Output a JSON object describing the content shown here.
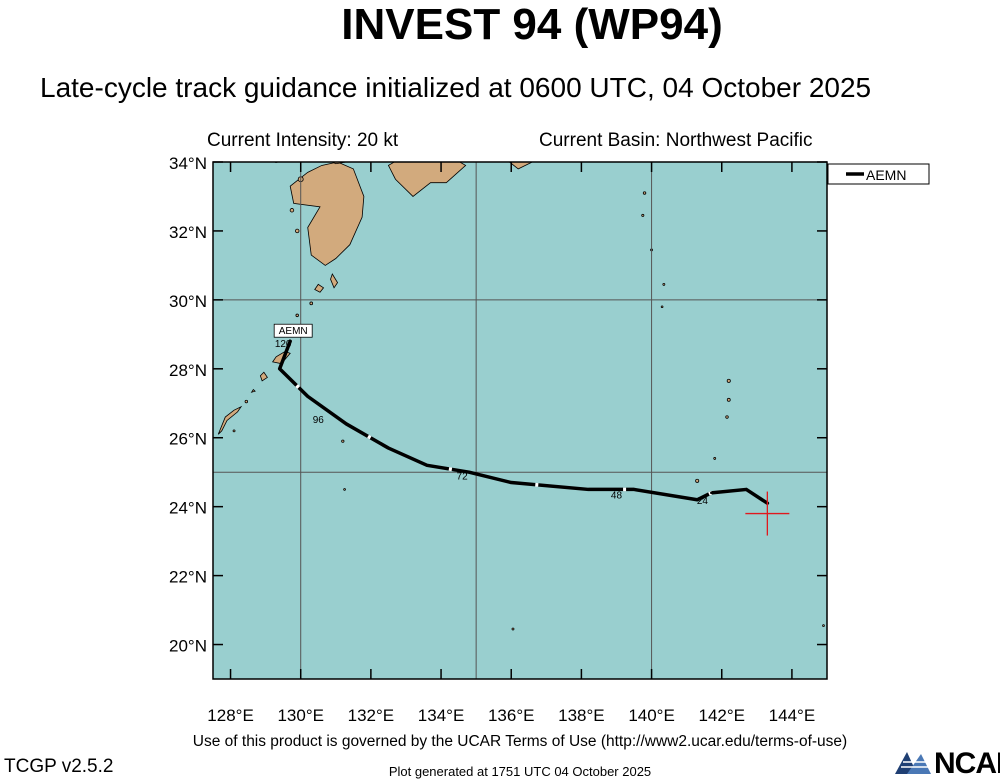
{
  "header": {
    "title": "INVEST 94 (WP94)",
    "subtitle": "Late-cycle track guidance initialized at 0600 UTC, 04 October 2025"
  },
  "info": {
    "intensity": "Current Intensity: 20 kt",
    "basin": "Current Basin: Northwest Pacific"
  },
  "map": {
    "lon_range": [
      127.5,
      145.0
    ],
    "lat_range": [
      19.0,
      34.0
    ],
    "lon_ticks": [
      "128°E",
      "130°E",
      "132°E",
      "134°E",
      "136°E",
      "138°E",
      "140°E",
      "142°E",
      "144°E"
    ],
    "lat_ticks": [
      "20°N",
      "22°N",
      "24°N",
      "26°N",
      "28°N",
      "30°N",
      "32°N",
      "34°N"
    ],
    "gridlines_lon": [
      130,
      135,
      140,
      145
    ],
    "gridlines_lat": [
      25,
      30
    ],
    "ocean_color": "#99cfcf",
    "land_color": "#d2aa7d",
    "current_position": {
      "lon": 143.3,
      "lat": 23.8
    }
  },
  "legend": {
    "entries": [
      {
        "label": "AEMN",
        "color": "#000000"
      }
    ]
  },
  "tracks": [
    {
      "label": "AEMN",
      "color": "#000000",
      "points": [
        {
          "lon": 143.3,
          "lat": 24.1
        },
        {
          "lon": 142.7,
          "lat": 24.5
        },
        {
          "lon": 141.7,
          "lat": 24.4
        },
        {
          "lon": 141.3,
          "lat": 24.2
        },
        {
          "lon": 139.5,
          "lat": 24.5
        },
        {
          "lon": 138.2,
          "lat": 24.5
        },
        {
          "lon": 136.0,
          "lat": 24.7
        },
        {
          "lon": 134.8,
          "lat": 25.0
        },
        {
          "lon": 133.6,
          "lat": 25.2
        },
        {
          "lon": 132.5,
          "lat": 25.7
        },
        {
          "lon": 131.3,
          "lat": 26.4
        },
        {
          "lon": 130.2,
          "lat": 27.2
        },
        {
          "lon": 129.4,
          "lat": 28.0
        },
        {
          "lon": 129.7,
          "lat": 28.8
        }
      ],
      "hour_labels": [
        {
          "text": "24",
          "lon": 141.45,
          "lat": 24.2
        },
        {
          "text": "48",
          "lon": 139.0,
          "lat": 24.35
        },
        {
          "text": "72",
          "lon": 134.6,
          "lat": 24.9
        },
        {
          "text": "96",
          "lon": 130.5,
          "lat": 26.55
        },
        {
          "text": "120",
          "lon": 129.5,
          "lat": 28.75
        }
      ]
    }
  ],
  "footer": {
    "terms": "Use of this product is governed by the UCAR Terms of Use (http://www2.ucar.edu/terms-of-use)",
    "version": "TCGP v2.5.2",
    "generated": "Plot generated at 1751 UTC   04 October 2025",
    "logo_text": "NCAR"
  }
}
